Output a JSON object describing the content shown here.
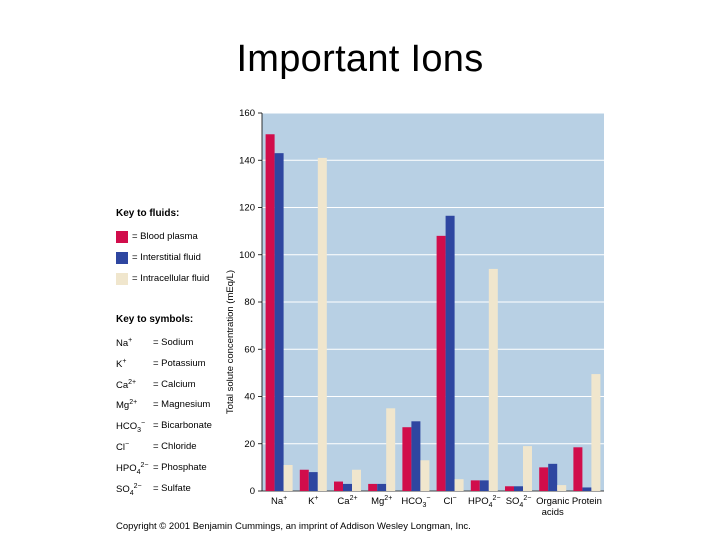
{
  "slide": {
    "title": "Important Ions",
    "copyright": "Copyright © 2001 Benjamin Cummings, an imprint of Addison Wesley Longman, Inc."
  },
  "key": {
    "fluids_heading": "Key to fluids:",
    "fluids": [
      {
        "label": "= Blood plasma",
        "color": "#d10d4b"
      },
      {
        "label": "= Interstitial fluid",
        "color": "#2e46a0"
      },
      {
        "label": "= Intracellular fluid",
        "color": "#f0e6cd"
      }
    ],
    "symbols_heading": "Key to symbols:",
    "symbols": [
      {
        "base": "Na",
        "sub": "",
        "sup": "+",
        "meaning": "= Sodium"
      },
      {
        "base": "K",
        "sub": "",
        "sup": "+",
        "meaning": "= Potassium"
      },
      {
        "base": "Ca",
        "sub": "",
        "sup": "2+",
        "meaning": "= Calcium"
      },
      {
        "base": "Mg",
        "sub": "",
        "sup": "2+",
        "meaning": "= Magnesium"
      },
      {
        "base": "HCO",
        "sub": "3",
        "sup": "−",
        "meaning": "= Bicarbonate"
      },
      {
        "base": "Cl",
        "sub": "",
        "sup": "−",
        "meaning": "= Chloride"
      },
      {
        "base": "HPO",
        "sub": "4",
        "sup": "2−",
        "meaning": "= Phosphate"
      },
      {
        "base": "SO",
        "sub": "4",
        "sup": "2−",
        "meaning": "= Sulfate"
      }
    ]
  },
  "chart_data": {
    "type": "bar",
    "title": "",
    "xlabel": "",
    "ylabel": "Total solute concentration (mEq/L)",
    "ylim": [
      0,
      160
    ],
    "yticks": [
      0,
      20,
      40,
      60,
      80,
      100,
      120,
      140,
      160
    ],
    "grid": true,
    "background": "#b8d0e4",
    "categories": [
      {
        "base": "Na",
        "sub": "",
        "sup": "+"
      },
      {
        "base": "K",
        "sub": "",
        "sup": "+"
      },
      {
        "base": "Ca",
        "sub": "",
        "sup": "2+"
      },
      {
        "base": "Mg",
        "sub": "",
        "sup": "2+"
      },
      {
        "base": "HCO",
        "sub": "3",
        "sup": "−"
      },
      {
        "base": "Cl",
        "sub": "",
        "sup": "−"
      },
      {
        "base": "HPO",
        "sub": "4",
        "sup": "2−"
      },
      {
        "base": "SO",
        "sub": "4",
        "sup": "2−"
      },
      {
        "base": "Organic",
        "line2": "acids",
        "sub": "",
        "sup": ""
      },
      {
        "base": "Protein",
        "sub": "",
        "sup": ""
      }
    ],
    "series": [
      {
        "name": "Blood plasma",
        "color": "#d10d4b",
        "values": [
          151,
          9,
          4,
          3,
          27,
          108,
          4.5,
          2,
          10,
          18.5
        ]
      },
      {
        "name": "Interstitial fluid",
        "color": "#2e46a0",
        "values": [
          143,
          8,
          3,
          3,
          29.5,
          116.5,
          4.5,
          2,
          11.5,
          1.5
        ]
      },
      {
        "name": "Intracellular fluid",
        "color": "#f0e6cd",
        "values": [
          11,
          141,
          9,
          35,
          13,
          5,
          94,
          19,
          2.5,
          49.5
        ]
      }
    ]
  }
}
